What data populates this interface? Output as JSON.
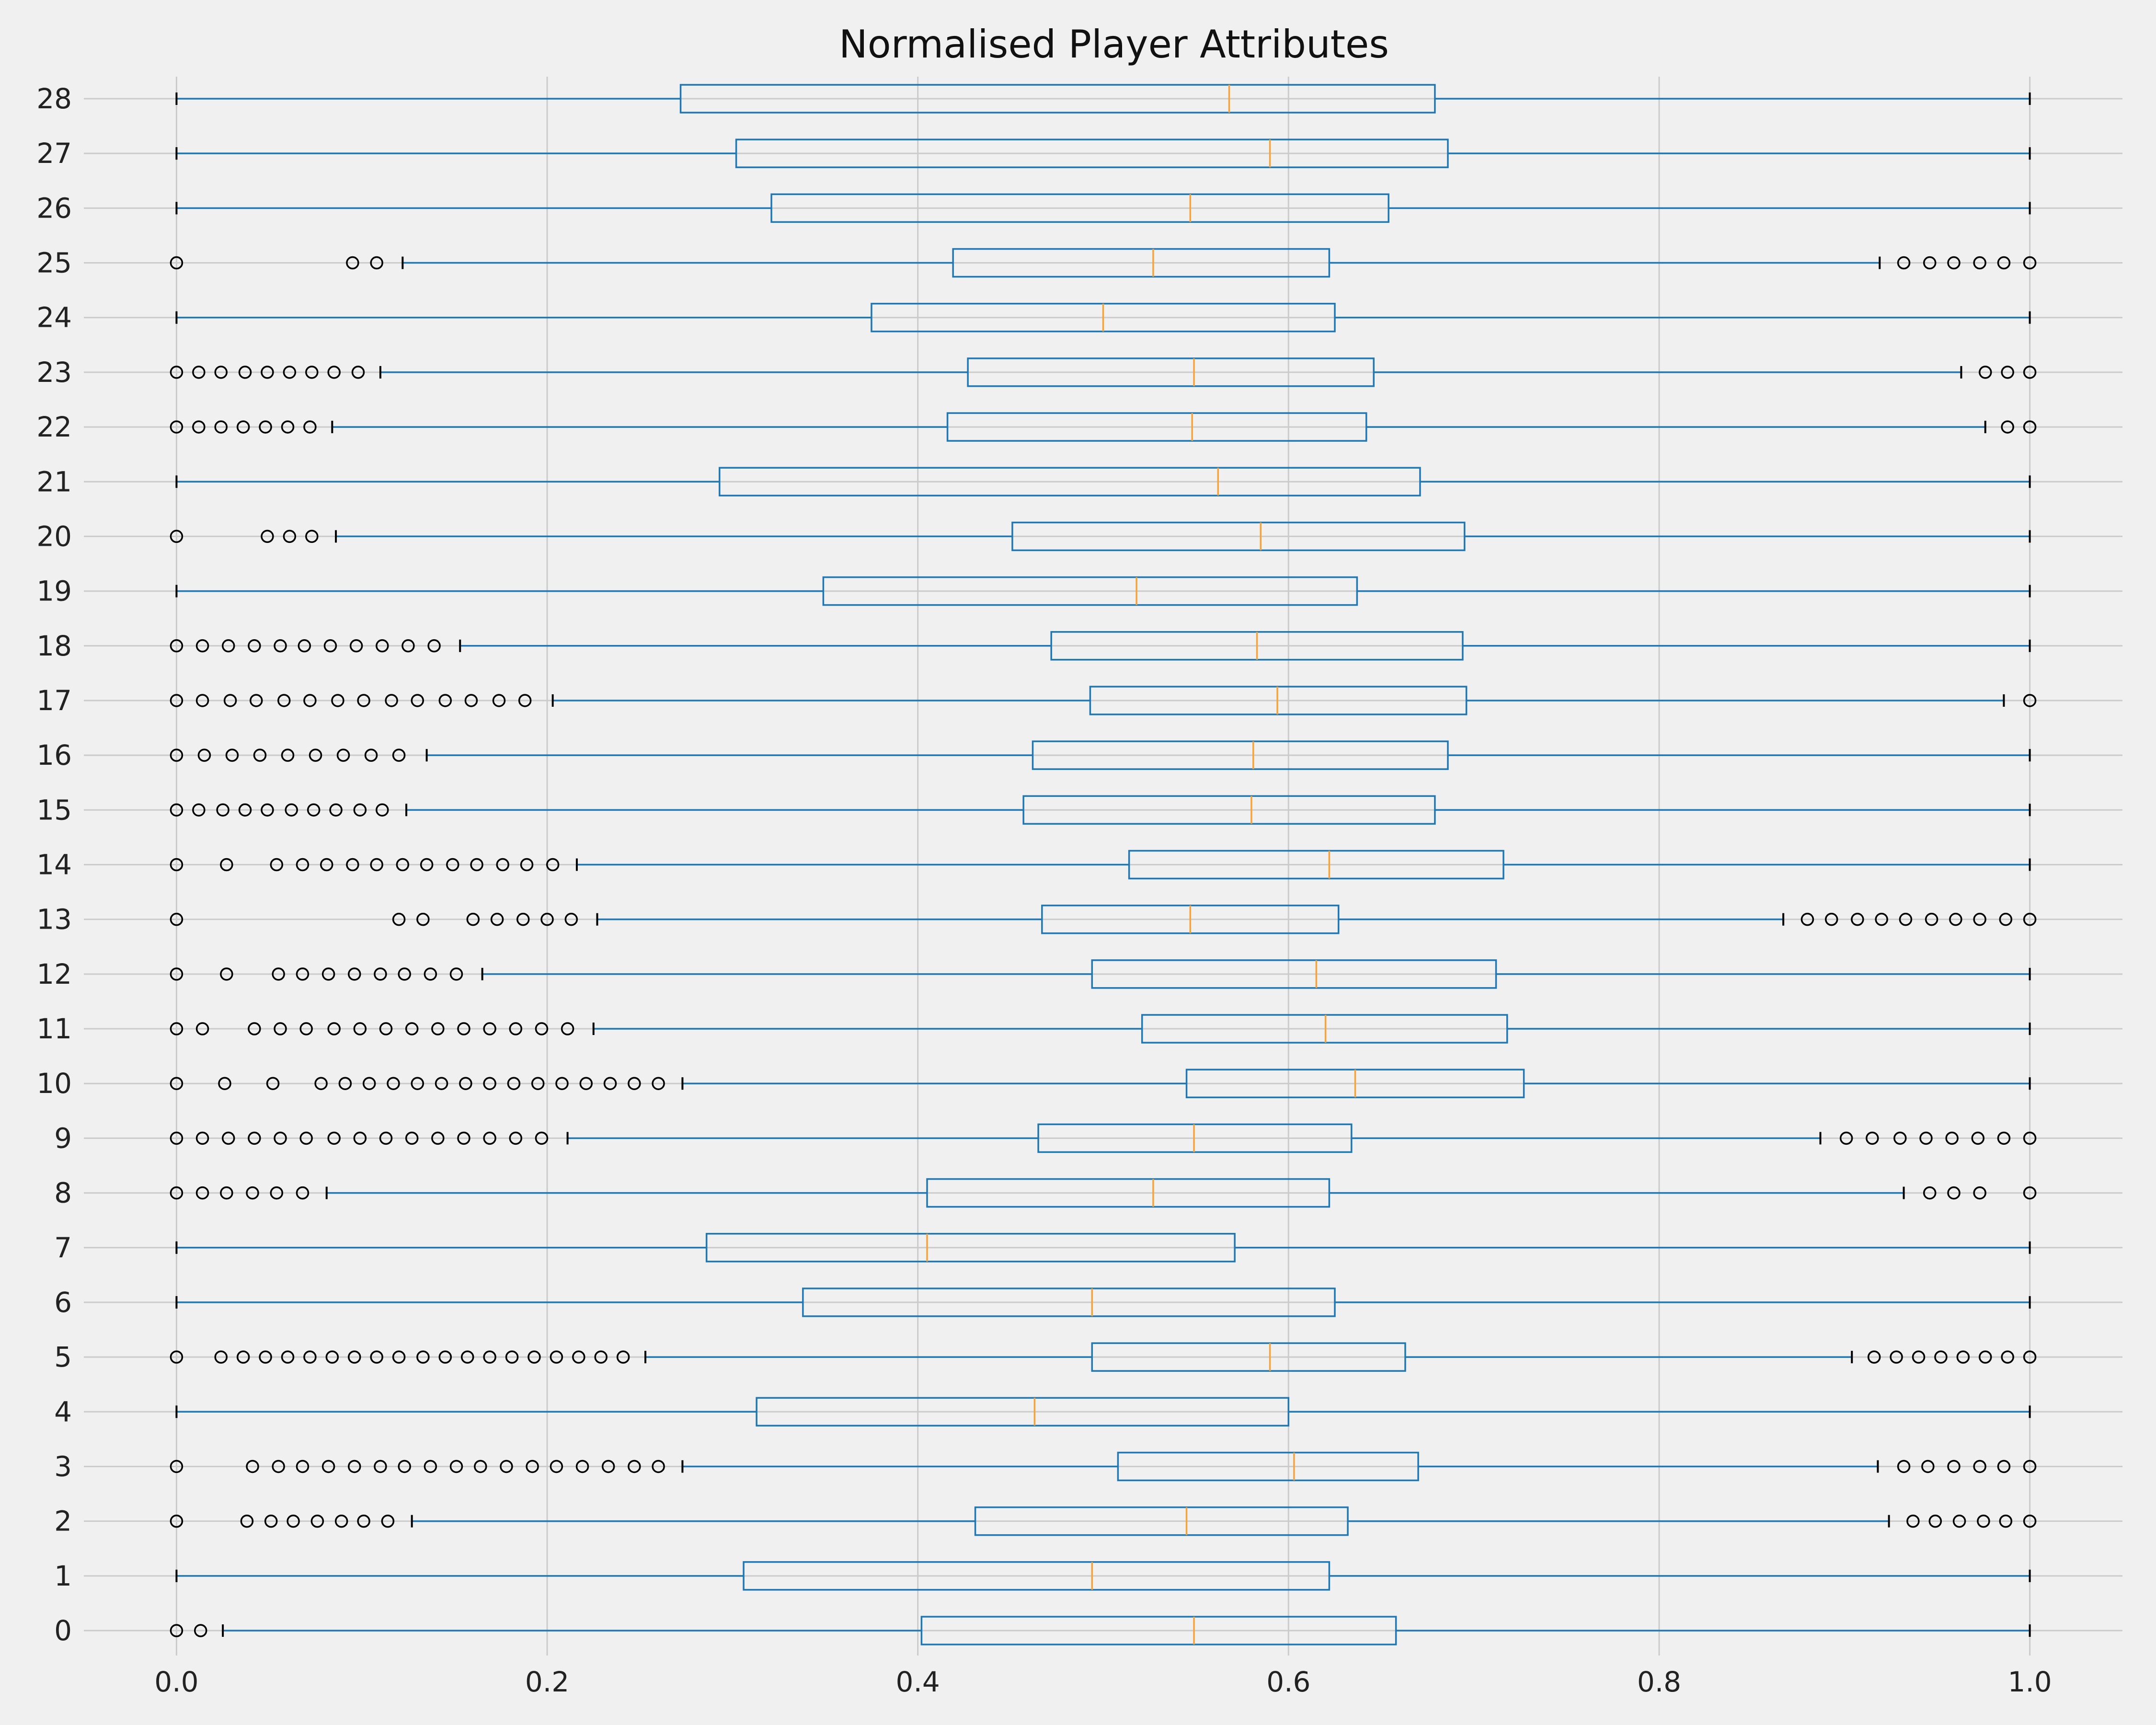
{
  "chart_data": {
    "type": "boxplot",
    "orientation": "horizontal",
    "title": "Normalised Player Attributes",
    "xlabel": "",
    "ylabel": "",
    "xlim": [
      -0.05,
      1.05
    ],
    "xticks": [
      0.0,
      0.2,
      0.4,
      0.6,
      0.8,
      1.0
    ],
    "xtick_labels": [
      "0.0",
      "0.2",
      "0.4",
      "0.6",
      "0.8",
      "1.0"
    ],
    "grid": true,
    "colors": {
      "box": "#1f77b4",
      "median": "#f5a33a",
      "background": "#f0f0f0",
      "grid": "#cbcbcb",
      "flier": "#000000"
    },
    "categories": [
      "0",
      "1",
      "2",
      "3",
      "4",
      "5",
      "6",
      "7",
      "8",
      "9",
      "10",
      "11",
      "12",
      "13",
      "14",
      "15",
      "16",
      "17",
      "18",
      "19",
      "20",
      "21",
      "22",
      "23",
      "24",
      "25",
      "26",
      "27",
      "28"
    ],
    "boxes": [
      {
        "label": "0",
        "whislo": 0.025,
        "q1": 0.402,
        "med": 0.549,
        "q3": 0.658,
        "whishi": 1.0,
        "fliers": [
          0.0,
          0.013
        ]
      },
      {
        "label": "1",
        "whislo": 0.0,
        "q1": 0.306,
        "med": 0.494,
        "q3": 0.622,
        "whishi": 1.0,
        "fliers": []
      },
      {
        "label": "2",
        "whislo": 0.127,
        "q1": 0.431,
        "med": 0.545,
        "q3": 0.632,
        "whishi": 0.924,
        "fliers": [
          0.0,
          0.038,
          0.051,
          0.063,
          0.076,
          0.089,
          0.101,
          0.114,
          0.937,
          0.949,
          0.962,
          0.975,
          0.987,
          1.0
        ]
      },
      {
        "label": "3",
        "whislo": 0.273,
        "q1": 0.508,
        "med": 0.603,
        "q3": 0.67,
        "whishi": 0.918,
        "fliers": [
          0.0,
          0.041,
          0.055,
          0.068,
          0.082,
          0.096,
          0.11,
          0.123,
          0.137,
          0.151,
          0.164,
          0.178,
          0.192,
          0.205,
          0.219,
          0.233,
          0.247,
          0.26,
          0.932,
          0.945,
          0.959,
          0.973,
          0.986,
          1.0
        ]
      },
      {
        "label": "4",
        "whislo": 0.0,
        "q1": 0.313,
        "med": 0.463,
        "q3": 0.6,
        "whishi": 1.0,
        "fliers": []
      },
      {
        "label": "5",
        "whislo": 0.253,
        "q1": 0.494,
        "med": 0.59,
        "q3": 0.663,
        "whishi": 0.904,
        "fliers": [
          0.0,
          0.024,
          0.036,
          0.048,
          0.06,
          0.072,
          0.084,
          0.096,
          0.108,
          0.12,
          0.133,
          0.145,
          0.157,
          0.169,
          0.181,
          0.193,
          0.205,
          0.217,
          0.229,
          0.241,
          0.916,
          0.928,
          0.94,
          0.952,
          0.964,
          0.976,
          0.988,
          1.0
        ]
      },
      {
        "label": "6",
        "whislo": 0.0,
        "q1": 0.338,
        "med": 0.494,
        "q3": 0.625,
        "whishi": 1.0,
        "fliers": []
      },
      {
        "label": "7",
        "whislo": 0.0,
        "q1": 0.286,
        "med": 0.405,
        "q3": 0.571,
        "whishi": 1.0,
        "fliers": []
      },
      {
        "label": "8",
        "whislo": 0.081,
        "q1": 0.405,
        "med": 0.527,
        "q3": 0.622,
        "whishi": 0.932,
        "fliers": [
          0.0,
          0.014,
          0.027,
          0.041,
          0.054,
          0.068,
          0.946,
          0.959,
          0.973,
          1.0
        ]
      },
      {
        "label": "9",
        "whislo": 0.211,
        "q1": 0.465,
        "med": 0.549,
        "q3": 0.634,
        "whishi": 0.887,
        "fliers": [
          0.0,
          0.014,
          0.028,
          0.042,
          0.056,
          0.07,
          0.085,
          0.099,
          0.113,
          0.127,
          0.141,
          0.155,
          0.169,
          0.183,
          0.197,
          0.901,
          0.915,
          0.93,
          0.944,
          0.958,
          0.972,
          0.986,
          1.0
        ]
      },
      {
        "label": "10",
        "whislo": 0.273,
        "q1": 0.545,
        "med": 0.636,
        "q3": 0.727,
        "whishi": 1.0,
        "fliers": [
          0.0,
          0.026,
          0.052,
          0.078,
          0.091,
          0.104,
          0.117,
          0.13,
          0.143,
          0.156,
          0.169,
          0.182,
          0.195,
          0.208,
          0.221,
          0.234,
          0.247,
          0.26
        ]
      },
      {
        "label": "11",
        "whislo": 0.225,
        "q1": 0.521,
        "med": 0.62,
        "q3": 0.718,
        "whishi": 1.0,
        "fliers": [
          0.0,
          0.014,
          0.042,
          0.056,
          0.07,
          0.085,
          0.099,
          0.113,
          0.127,
          0.141,
          0.155,
          0.169,
          0.183,
          0.197,
          0.211
        ]
      },
      {
        "label": "12",
        "whislo": 0.165,
        "q1": 0.494,
        "med": 0.615,
        "q3": 0.712,
        "whishi": 1.0,
        "fliers": [
          0.0,
          0.027,
          0.055,
          0.068,
          0.082,
          0.096,
          0.11,
          0.123,
          0.137,
          0.151
        ]
      },
      {
        "label": "13",
        "whislo": 0.227,
        "q1": 0.467,
        "med": 0.547,
        "q3": 0.627,
        "whishi": 0.867,
        "fliers": [
          0.0,
          0.12,
          0.133,
          0.16,
          0.173,
          0.187,
          0.2,
          0.213,
          0.88,
          0.893,
          0.907,
          0.92,
          0.933,
          0.947,
          0.96,
          0.973,
          0.987,
          1.0
        ]
      },
      {
        "label": "14",
        "whislo": 0.216,
        "q1": 0.514,
        "med": 0.622,
        "q3": 0.716,
        "whishi": 1.0,
        "fliers": [
          0.0,
          0.027,
          0.054,
          0.068,
          0.081,
          0.095,
          0.108,
          0.122,
          0.135,
          0.149,
          0.162,
          0.176,
          0.189,
          0.203
        ]
      },
      {
        "label": "15",
        "whislo": 0.124,
        "q1": 0.457,
        "med": 0.58,
        "q3": 0.679,
        "whishi": 1.0,
        "fliers": [
          0.0,
          0.012,
          0.025,
          0.037,
          0.049,
          0.062,
          0.074,
          0.086,
          0.099,
          0.111
        ]
      },
      {
        "label": "16",
        "whislo": 0.135,
        "q1": 0.462,
        "med": 0.581,
        "q3": 0.686,
        "whishi": 1.0,
        "fliers": [
          0.0,
          0.015,
          0.03,
          0.045,
          0.06,
          0.075,
          0.09,
          0.105,
          0.12
        ]
      },
      {
        "label": "17",
        "whislo": 0.203,
        "q1": 0.493,
        "med": 0.594,
        "q3": 0.696,
        "whishi": 0.986,
        "fliers": [
          0.0,
          0.014,
          0.029,
          0.043,
          0.058,
          0.072,
          0.087,
          0.101,
          0.116,
          0.13,
          0.145,
          0.159,
          0.174,
          0.188,
          1.0
        ]
      },
      {
        "label": "18",
        "whislo": 0.153,
        "q1": 0.472,
        "med": 0.583,
        "q3": 0.694,
        "whishi": 1.0,
        "fliers": [
          0.0,
          0.014,
          0.028,
          0.042,
          0.056,
          0.069,
          0.083,
          0.097,
          0.111,
          0.125,
          0.139
        ]
      },
      {
        "label": "19",
        "whislo": 0.0,
        "q1": 0.349,
        "med": 0.518,
        "q3": 0.637,
        "whishi": 1.0,
        "fliers": []
      },
      {
        "label": "20",
        "whislo": 0.086,
        "q1": 0.451,
        "med": 0.585,
        "q3": 0.695,
        "whishi": 1.0,
        "fliers": [
          0.0,
          0.049,
          0.061,
          0.073
        ]
      },
      {
        "label": "21",
        "whislo": 0.0,
        "q1": 0.293,
        "med": 0.562,
        "q3": 0.671,
        "whishi": 1.0,
        "fliers": []
      },
      {
        "label": "22",
        "whislo": 0.084,
        "q1": 0.416,
        "med": 0.548,
        "q3": 0.642,
        "whishi": 0.976,
        "fliers": [
          0.0,
          0.012,
          0.024,
          0.036,
          0.048,
          0.06,
          0.072,
          0.988,
          1.0
        ]
      },
      {
        "label": "23",
        "whislo": 0.11,
        "q1": 0.427,
        "med": 0.549,
        "q3": 0.646,
        "whishi": 0.963,
        "fliers": [
          0.0,
          0.012,
          0.024,
          0.037,
          0.049,
          0.061,
          0.073,
          0.085,
          0.098,
          0.976,
          0.988,
          1.0
        ]
      },
      {
        "label": "24",
        "whislo": 0.0,
        "q1": 0.375,
        "med": 0.5,
        "q3": 0.625,
        "whishi": 1.0,
        "fliers": []
      },
      {
        "label": "25",
        "whislo": 0.122,
        "q1": 0.419,
        "med": 0.527,
        "q3": 0.622,
        "whishi": 0.919,
        "fliers": [
          0.0,
          0.095,
          0.108,
          0.932,
          0.946,
          0.959,
          0.973,
          0.986,
          1.0
        ]
      },
      {
        "label": "26",
        "whislo": 0.0,
        "q1": 0.321,
        "med": 0.547,
        "q3": 0.654,
        "whishi": 1.0,
        "fliers": []
      },
      {
        "label": "27",
        "whislo": 0.0,
        "q1": 0.302,
        "med": 0.59,
        "q3": 0.686,
        "whishi": 1.0,
        "fliers": []
      },
      {
        "label": "28",
        "whislo": 0.0,
        "q1": 0.272,
        "med": 0.568,
        "q3": 0.679,
        "whishi": 1.0,
        "fliers": []
      }
    ]
  }
}
